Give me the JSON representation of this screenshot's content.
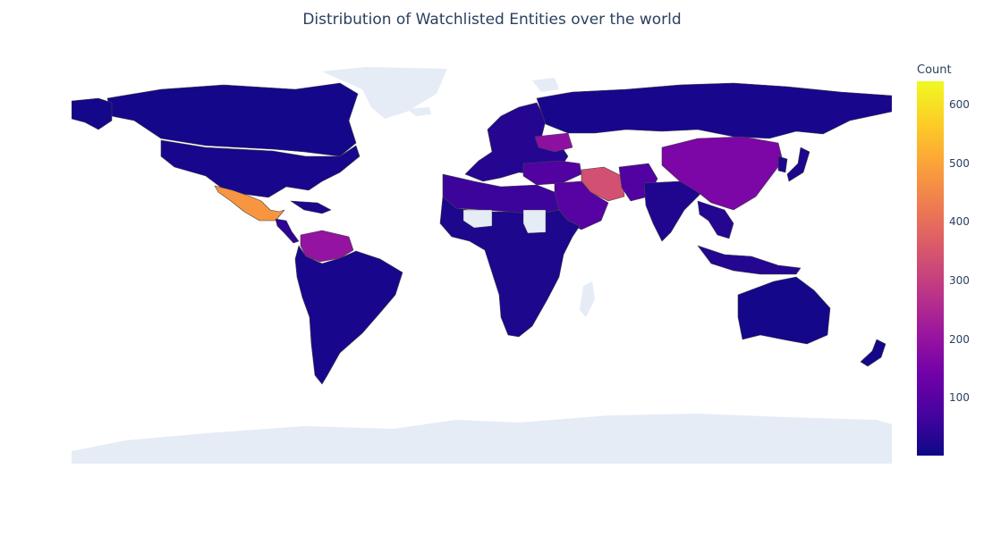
{
  "title": "Distribution of Watchlisted Entities over the world",
  "colorbar": {
    "title": "Count",
    "min": 1,
    "max": 640,
    "ticks": [
      "100",
      "200",
      "300",
      "400",
      "500",
      "600"
    ],
    "colorscale": [
      "#0d0887",
      "#46039f",
      "#7201a8",
      "#9c179e",
      "#bd3786",
      "#d8576b",
      "#ed7953",
      "#fb9f3a",
      "#fdca26",
      "#f0f921"
    ]
  },
  "map": {
    "projection": "equirectangular",
    "land_no_data_color": "#e5ecf6",
    "border_color": "#444444",
    "regions": [
      {
        "name": "Canada",
        "value": 10
      },
      {
        "name": "USA",
        "value": 15
      },
      {
        "name": "Alaska",
        "value": 10
      },
      {
        "name": "Mexico",
        "value": 480
      },
      {
        "name": "Central America",
        "value": 40
      },
      {
        "name": "Caribbean",
        "value": 20
      },
      {
        "name": "Colombia / Venezuela",
        "value": 200
      },
      {
        "name": "South America",
        "value": 15
      },
      {
        "name": "Europe",
        "value": 30
      },
      {
        "name": "Ukraine",
        "value": 190
      },
      {
        "name": "Russia",
        "value": 15
      },
      {
        "name": "Turkey / Middle East",
        "value": 90
      },
      {
        "name": "Iran",
        "value": 340
      },
      {
        "name": "Arabia",
        "value": 100
      },
      {
        "name": "Afghanistan / Pakistan",
        "value": 90
      },
      {
        "name": "India",
        "value": 25
      },
      {
        "name": "China",
        "value": 160
      },
      {
        "name": "Southeast Asia",
        "value": 30
      },
      {
        "name": "Indonesia",
        "value": 30
      },
      {
        "name": "Japan",
        "value": 20
      },
      {
        "name": "Korea",
        "value": 20
      },
      {
        "name": "Africa",
        "value": 20
      },
      {
        "name": "North Africa",
        "value": 60
      },
      {
        "name": "Australia",
        "value": 10
      },
      {
        "name": "New Zealand",
        "value": 10
      }
    ],
    "no_data_regions": [
      "Greenland",
      "Antarctica",
      "Madagascar",
      "Iceland",
      "Svalbard",
      "Mali",
      "Sudan"
    ]
  }
}
